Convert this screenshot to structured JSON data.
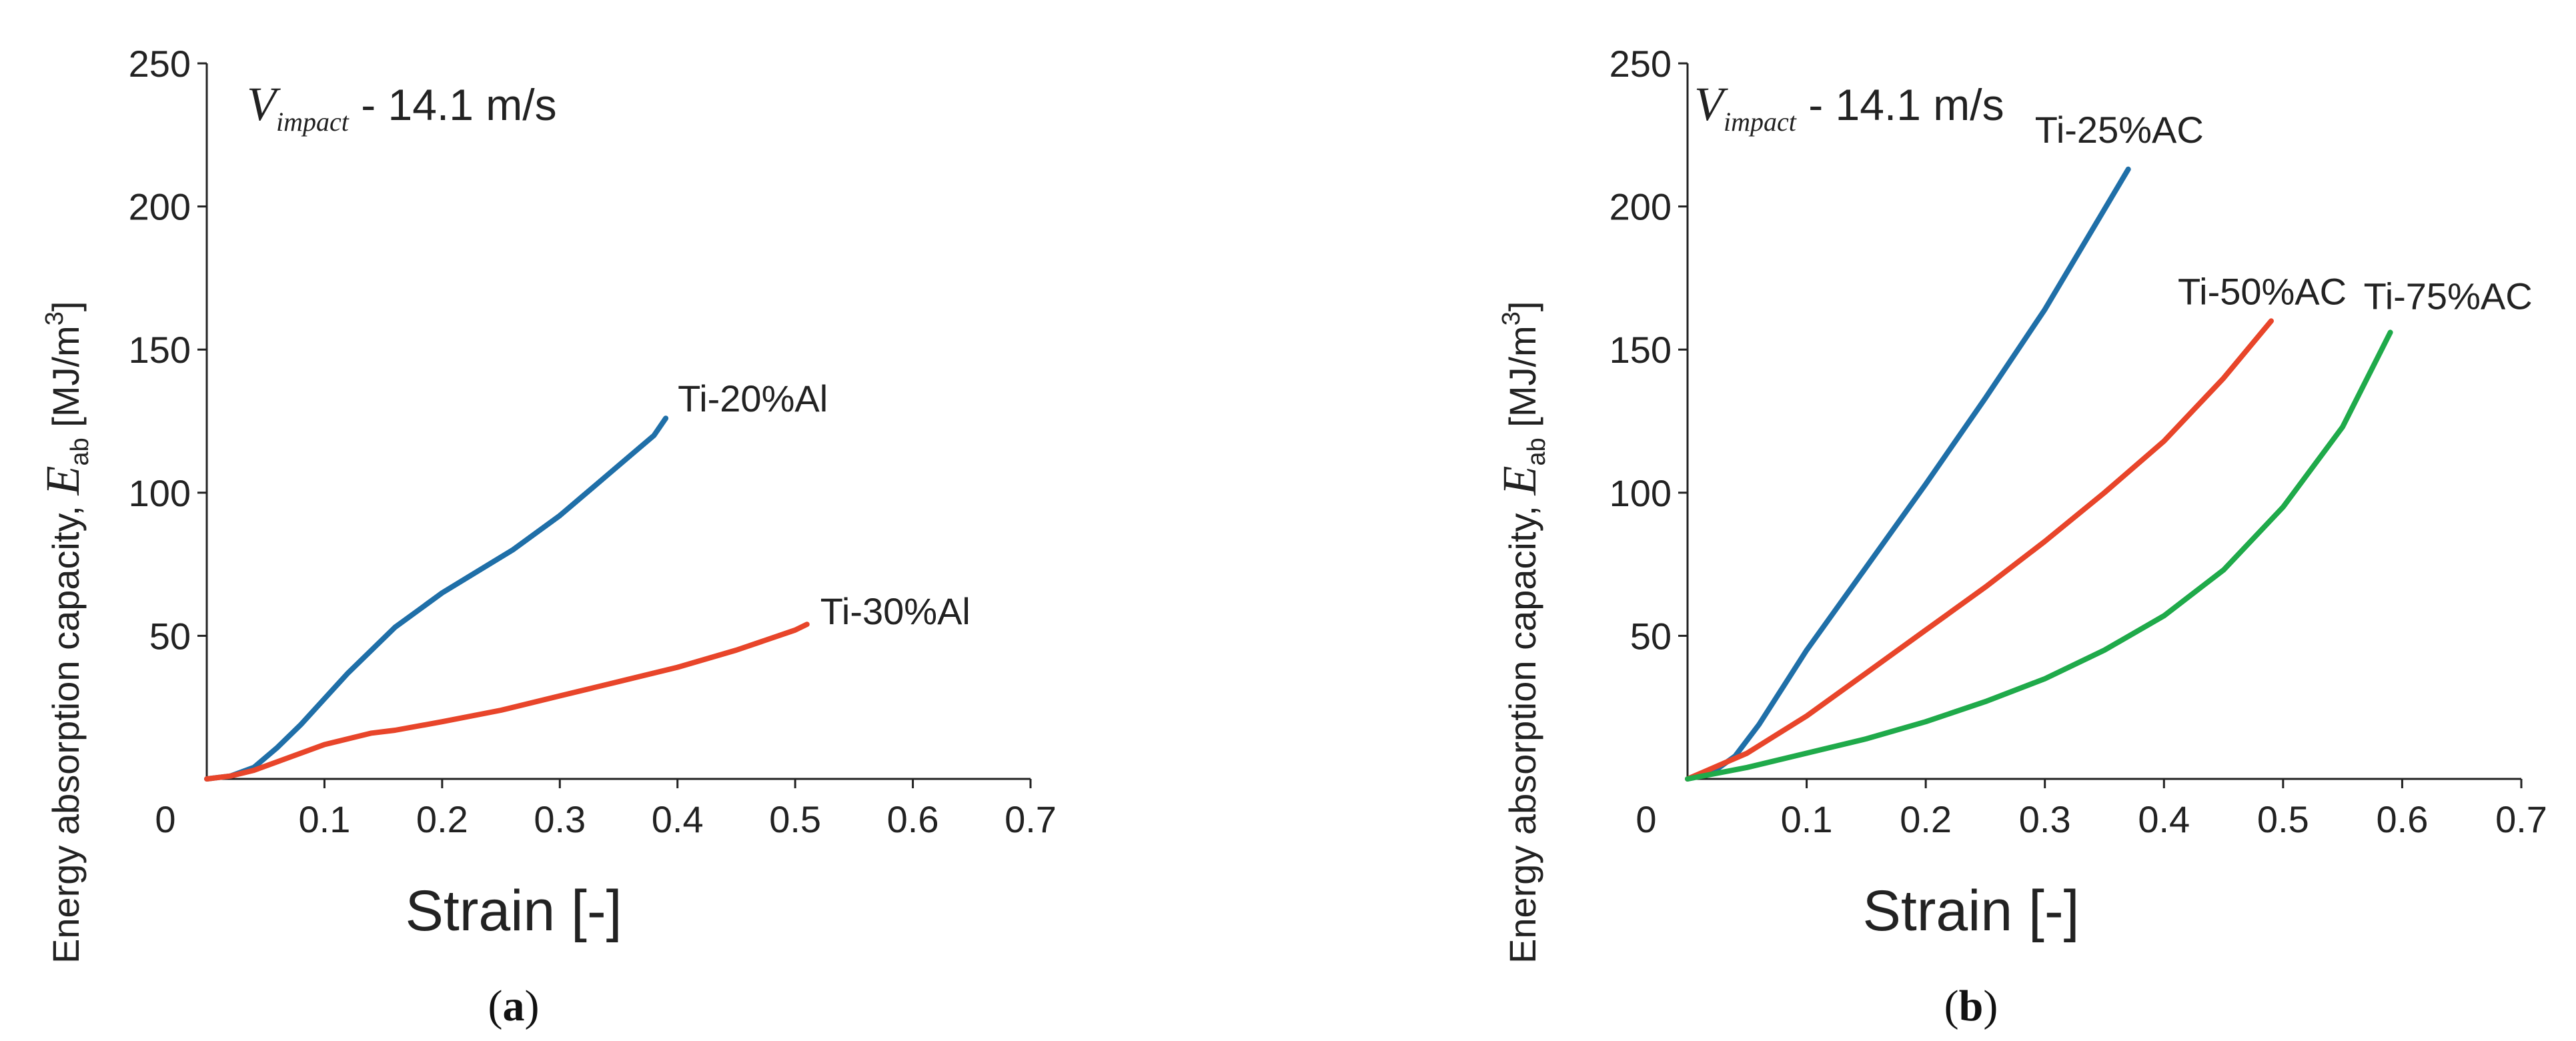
{
  "chart_data": [
    {
      "type": "line",
      "panel": "a",
      "caption_open": "(",
      "caption_letter": "a",
      "caption_close": ")",
      "annotation_prefix": "V",
      "annotation_subscript": "impact",
      "annotation_suffix": " - 14.1 m/s",
      "xlabel": "Strain [-]",
      "ylabel_prefix": "Energy absorption capacity, ",
      "ylabel_symbol": "E",
      "ylabel_subscript": "ab",
      "ylabel_unit": " [MJ/m",
      "ylabel_unit_sup": "3",
      "ylabel_unit_close": "]",
      "xlim": [
        0,
        0.7
      ],
      "ylim": [
        0,
        250
      ],
      "xticks": [
        "0.1",
        "0.2",
        "0.3",
        "0.4",
        "0.5",
        "0.6",
        "0.7"
      ],
      "yticks": [
        "50",
        "100",
        "150",
        "200",
        "250"
      ],
      "origin_label": "0",
      "series": [
        {
          "name": "Ti-20%Al",
          "color": "#1f6fa8",
          "x": [
            0,
            0.02,
            0.04,
            0.06,
            0.08,
            0.1,
            0.12,
            0.14,
            0.16,
            0.18,
            0.2,
            0.22,
            0.24,
            0.26,
            0.28,
            0.3,
            0.32,
            0.34,
            0.36,
            0.38,
            0.39
          ],
          "y": [
            0,
            1,
            4,
            11,
            19,
            28,
            37,
            45,
            53,
            59,
            65,
            70,
            75,
            80,
            86,
            92,
            99,
            106,
            113,
            120,
            126
          ]
        },
        {
          "name": "Ti-30%Al",
          "color": "#e8452a",
          "x": [
            0,
            0.02,
            0.04,
            0.06,
            0.08,
            0.1,
            0.12,
            0.14,
            0.16,
            0.2,
            0.25,
            0.3,
            0.35,
            0.4,
            0.45,
            0.5,
            0.51
          ],
          "y": [
            0,
            1,
            3,
            6,
            9,
            12,
            14,
            16,
            17,
            20,
            24,
            29,
            34,
            39,
            45,
            52,
            54
          ]
        }
      ]
    },
    {
      "type": "line",
      "panel": "b",
      "caption_open": "(",
      "caption_letter": "b",
      "caption_close": ")",
      "annotation_prefix": "V",
      "annotation_subscript": "impact",
      "annotation_suffix": " - 14.1 m/s",
      "xlabel": "Strain [-]",
      "ylabel_prefix": "Energy absorption capacity, ",
      "ylabel_symbol": "E",
      "ylabel_subscript": "ab",
      "ylabel_unit": " [MJ/m",
      "ylabel_unit_sup": "3",
      "ylabel_unit_close": "]",
      "xlim": [
        0,
        0.7
      ],
      "ylim": [
        0,
        250
      ],
      "xticks": [
        "0.1",
        "0.2",
        "0.3",
        "0.4",
        "0.5",
        "0.6",
        "0.7"
      ],
      "yticks": [
        "50",
        "100",
        "150",
        "200",
        "250"
      ],
      "origin_label": "0",
      "series": [
        {
          "name": "Ti-25%AC",
          "color": "#1f6fa8",
          "x": [
            0,
            0.02,
            0.04,
            0.06,
            0.08,
            0.1,
            0.15,
            0.2,
            0.25,
            0.3,
            0.35,
            0.37
          ],
          "y": [
            0,
            2,
            8,
            19,
            32,
            45,
            74,
            103,
            133,
            164,
            199,
            213
          ]
        },
        {
          "name": "Ti-50%AC",
          "color": "#e8452a",
          "x": [
            0,
            0.05,
            0.1,
            0.15,
            0.2,
            0.25,
            0.3,
            0.35,
            0.4,
            0.45,
            0.49
          ],
          "y": [
            0,
            9,
            22,
            37,
            52,
            67,
            83,
            100,
            118,
            140,
            160
          ]
        },
        {
          "name": "Ti-75%AC",
          "color": "#1faa4a",
          "x": [
            0,
            0.05,
            0.1,
            0.15,
            0.2,
            0.25,
            0.3,
            0.35,
            0.4,
            0.45,
            0.5,
            0.55,
            0.59
          ],
          "y": [
            0,
            4,
            9,
            14,
            20,
            27,
            35,
            45,
            57,
            73,
            95,
            123,
            156
          ]
        }
      ]
    }
  ]
}
